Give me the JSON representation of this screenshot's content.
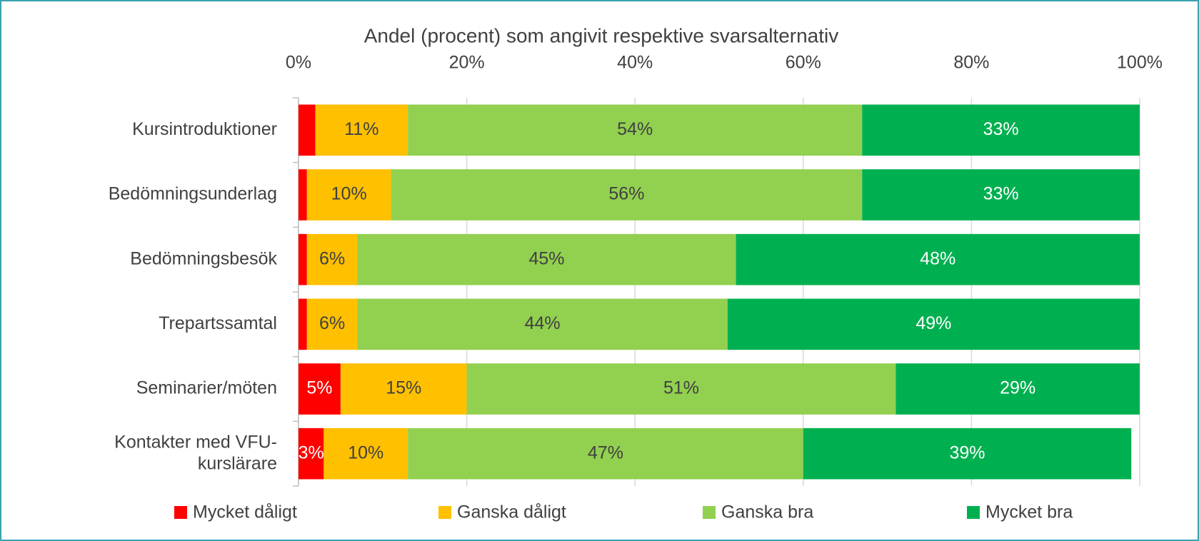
{
  "chart_data": {
    "type": "stacked-barh",
    "title": "Andel (procent) som angivit respektive svarsalternativ",
    "categories": [
      "Kursintroduktioner",
      "Bedömningsunderlag",
      "Bedömningsbesök",
      "Trepartssamtal",
      "Seminarier/möten",
      "Kontakter med VFU-kurslärare"
    ],
    "series": [
      {
        "name": "Mycket dåligt",
        "color": "#ff0000",
        "label_color": "#ffffff",
        "values": [
          2,
          1,
          1,
          1,
          5,
          3
        ],
        "value_labels": [
          null,
          null,
          null,
          null,
          "5%",
          "3%"
        ]
      },
      {
        "name": "Ganska dåligt",
        "color": "#ffc000",
        "label_color": "#404040",
        "values": [
          11,
          10,
          6,
          6,
          15,
          10
        ],
        "value_labels": [
          "11%",
          "10%",
          "6%",
          "6%",
          "15%",
          "10%"
        ]
      },
      {
        "name": "Ganska bra",
        "color": "#92d050",
        "label_color": "#404040",
        "values": [
          54,
          56,
          45,
          44,
          51,
          47
        ],
        "value_labels": [
          "54%",
          "56%",
          "45%",
          "44%",
          "51%",
          "47%"
        ]
      },
      {
        "name": "Mycket bra",
        "color": "#00b050",
        "label_color": "#ffffff",
        "values": [
          33,
          33,
          48,
          49,
          29,
          39
        ],
        "value_labels": [
          "33%",
          "33%",
          "48%",
          "49%",
          "29%",
          "39%"
        ]
      }
    ],
    "xlim": [
      0,
      100
    ],
    "xticks": [
      {
        "value": 0,
        "label": "0%"
      },
      {
        "value": 20,
        "label": "20%"
      },
      {
        "value": 40,
        "label": "40%"
      },
      {
        "value": 60,
        "label": "60%"
      },
      {
        "value": 80,
        "label": "80%"
      },
      {
        "value": 100,
        "label": "100%"
      }
    ],
    "grid": true,
    "legend": "bottom"
  }
}
